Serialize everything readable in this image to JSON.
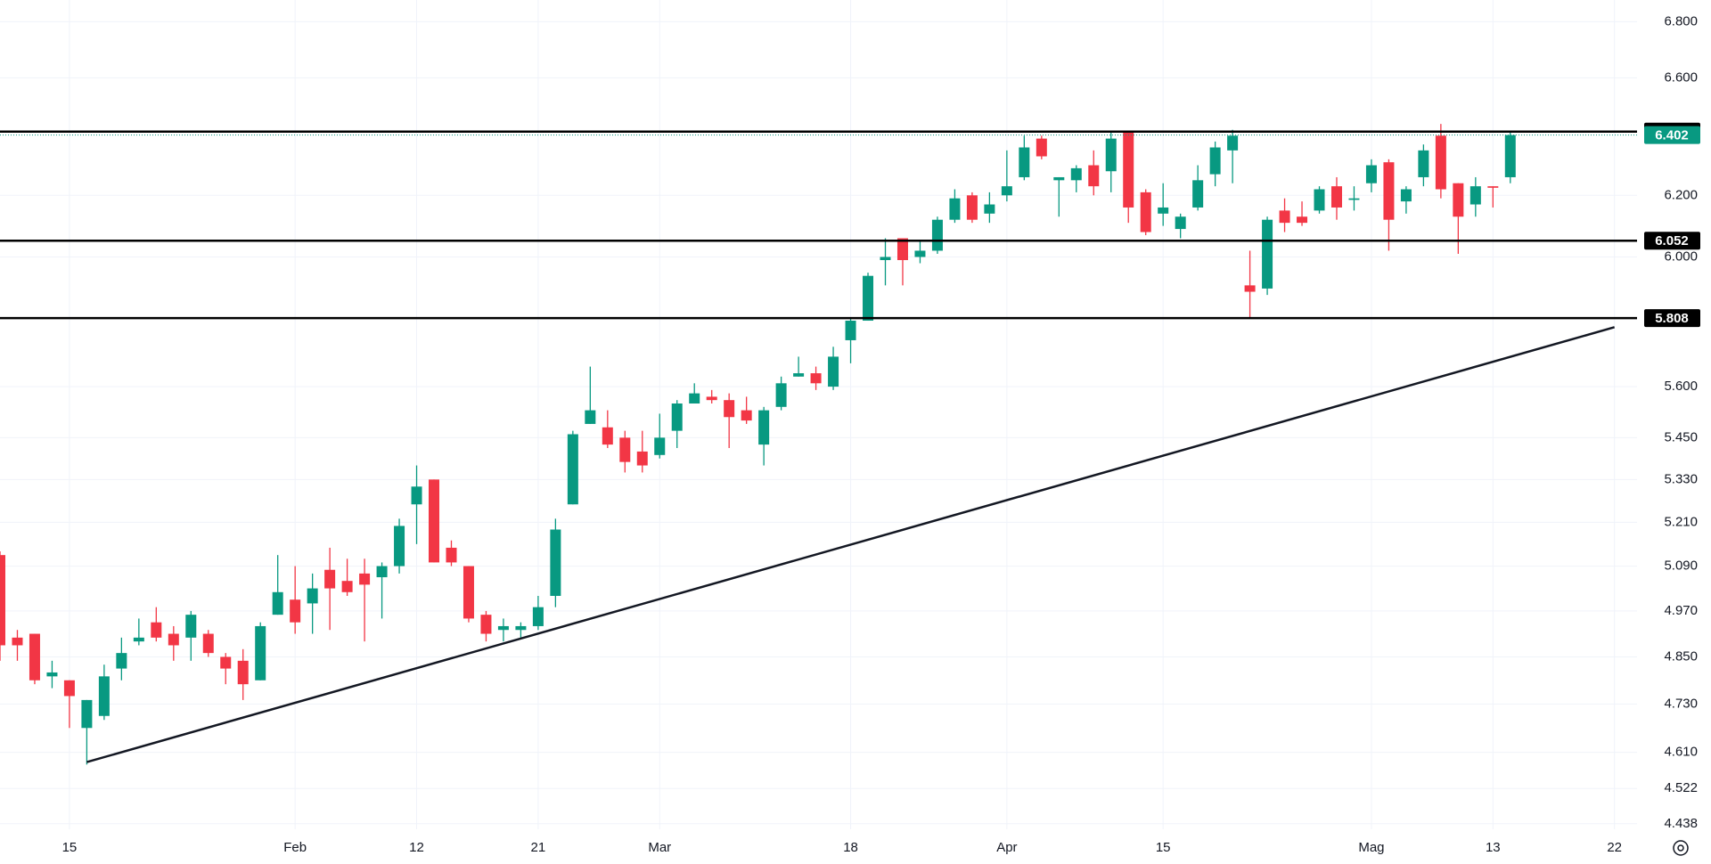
{
  "chart_data": {
    "type": "candlestick",
    "up_color": "#089981",
    "down_color": "#f23645",
    "log_scale": true,
    "grid": true,
    "open": [
      5.12,
      4.9,
      4.91,
      4.8,
      4.79,
      4.67,
      4.7,
      4.82,
      4.89,
      4.94,
      4.91,
      4.9,
      4.91,
      4.85,
      4.84,
      4.79,
      4.96,
      5.0,
      4.99,
      5.08,
      5.05,
      5.07,
      5.06,
      5.09,
      5.26,
      5.33,
      5.14,
      5.09,
      4.96,
      4.92,
      4.92,
      4.93,
      5.01,
      5.26,
      5.49,
      5.48,
      5.45,
      5.41,
      5.4,
      5.47,
      5.55,
      5.57,
      5.56,
      5.53,
      5.43,
      5.54,
      5.63,
      5.64,
      5.6,
      5.74,
      5.8,
      5.99,
      6.06,
      6.0,
      6.02,
      6.12,
      6.2,
      6.14,
      6.2,
      6.26,
      6.39,
      6.25,
      6.25,
      6.3,
      6.28,
      6.41,
      6.21,
      6.14,
      6.09,
      6.16,
      6.27,
      6.35,
      5.91,
      5.9,
      6.15,
      6.13,
      6.15,
      6.23,
      6.185,
      6.24,
      6.31,
      6.18,
      6.26,
      6.4,
      6.24,
      6.17,
      6.23,
      6.26
    ],
    "high": [
      5.13,
      4.92,
      4.91,
      4.84,
      4.79,
      4.74,
      4.83,
      4.9,
      4.95,
      4.98,
      4.93,
      4.97,
      4.92,
      4.86,
      4.87,
      4.94,
      5.12,
      5.09,
      5.07,
      5.14,
      5.11,
      5.11,
      5.1,
      5.22,
      5.37,
      5.33,
      5.16,
      5.09,
      4.97,
      4.95,
      4.94,
      5.01,
      5.22,
      5.47,
      5.66,
      5.53,
      5.47,
      5.47,
      5.52,
      5.56,
      5.61,
      5.59,
      5.58,
      5.57,
      5.54,
      5.63,
      5.69,
      5.66,
      5.72,
      5.81,
      5.95,
      6.06,
      6.06,
      6.05,
      6.13,
      6.22,
      6.21,
      6.21,
      6.35,
      6.4,
      6.4,
      6.26,
      6.3,
      6.35,
      6.41,
      6.41,
      6.22,
      6.24,
      6.14,
      6.3,
      6.38,
      6.42,
      6.02,
      6.13,
      6.19,
      6.18,
      6.23,
      6.26,
      6.23,
      6.32,
      6.32,
      6.23,
      6.37,
      6.44,
      6.24,
      6.26,
      6.23,
      6.41
    ],
    "low": [
      4.84,
      4.84,
      4.78,
      4.77,
      4.67,
      4.58,
      4.69,
      4.79,
      4.88,
      4.89,
      4.84,
      4.84,
      4.85,
      4.78,
      4.74,
      4.79,
      4.96,
      4.91,
      4.91,
      4.92,
      5.01,
      4.89,
      4.95,
      5.07,
      5.15,
      5.1,
      5.09,
      4.94,
      4.89,
      4.89,
      4.9,
      4.92,
      4.98,
      5.26,
      5.49,
      5.42,
      5.35,
      5.35,
      5.39,
      5.42,
      5.55,
      5.55,
      5.42,
      5.49,
      5.37,
      5.53,
      5.63,
      5.59,
      5.59,
      5.67,
      5.8,
      5.91,
      5.91,
      5.98,
      6.01,
      6.11,
      6.11,
      6.11,
      6.18,
      6.25,
      6.32,
      6.13,
      6.21,
      6.2,
      6.21,
      6.11,
      6.07,
      6.1,
      6.06,
      6.15,
      6.23,
      6.24,
      5.81,
      5.88,
      6.08,
      6.1,
      6.14,
      6.12,
      6.15,
      6.21,
      6.02,
      6.14,
      6.23,
      6.19,
      6.01,
      6.13,
      6.16,
      6.24
    ],
    "close": [
      4.88,
      4.88,
      4.79,
      4.81,
      4.75,
      4.74,
      4.8,
      4.86,
      4.9,
      4.9,
      4.88,
      4.96,
      4.86,
      4.82,
      4.78,
      4.93,
      5.02,
      4.94,
      5.03,
      5.03,
      5.02,
      5.04,
      5.09,
      5.2,
      5.31,
      5.1,
      5.1,
      4.95,
      4.91,
      4.93,
      4.93,
      4.98,
      5.19,
      5.46,
      5.53,
      5.43,
      5.38,
      5.37,
      5.45,
      5.55,
      5.58,
      5.56,
      5.51,
      5.5,
      5.53,
      5.61,
      5.64,
      5.61,
      5.69,
      5.8,
      5.94,
      6.0,
      5.99,
      6.02,
      6.12,
      6.19,
      6.12,
      6.17,
      6.23,
      6.36,
      6.33,
      6.26,
      6.29,
      6.23,
      6.39,
      6.16,
      6.08,
      6.16,
      6.13,
      6.25,
      6.36,
      6.4,
      5.89,
      6.12,
      6.11,
      6.11,
      6.22,
      6.16,
      6.19,
      6.3,
      6.12,
      6.22,
      6.35,
      6.22,
      6.13,
      6.23,
      6.225,
      6.402
    ],
    "xlim": [
      0,
      94.3
    ],
    "xticks": [
      {
        "value": 4,
        "label": "15"
      },
      {
        "value": 17,
        "label": "Feb"
      },
      {
        "value": 24,
        "label": "12"
      },
      {
        "value": 31,
        "label": "21"
      },
      {
        "value": 38,
        "label": "Mar"
      },
      {
        "value": 49,
        "label": "18"
      },
      {
        "value": 58,
        "label": "Apr"
      },
      {
        "value": 67,
        "label": "15"
      },
      {
        "value": 79,
        "label": "Mag"
      },
      {
        "value": 86,
        "label": "13"
      },
      {
        "value": 93,
        "label": "22"
      }
    ],
    "ylim": [
      4.425,
      6.879
    ],
    "yticks": [
      {
        "value": 6.8,
        "label": "6.800"
      },
      {
        "value": 6.6,
        "label": "6.600"
      },
      {
        "value": 6.2,
        "label": "6.200"
      },
      {
        "value": 6.0,
        "label": "6.000"
      },
      {
        "value": 5.6,
        "label": "5.600"
      },
      {
        "value": 5.45,
        "label": "5.450"
      },
      {
        "value": 5.33,
        "label": "5.330"
      },
      {
        "value": 5.21,
        "label": "5.210"
      },
      {
        "value": 5.09,
        "label": "5.090"
      },
      {
        "value": 4.97,
        "label": "4.970"
      },
      {
        "value": 4.85,
        "label": "4.850"
      },
      {
        "value": 4.73,
        "label": "4.730"
      },
      {
        "value": 4.61,
        "label": "4.610"
      },
      4.522,
      4.438
    ],
    "levels": [
      6.414,
      6.052,
      5.808
    ],
    "trendline": {
      "x": [
        5,
        93
      ],
      "y": [
        4.586,
        5.78
      ]
    }
  }
}
